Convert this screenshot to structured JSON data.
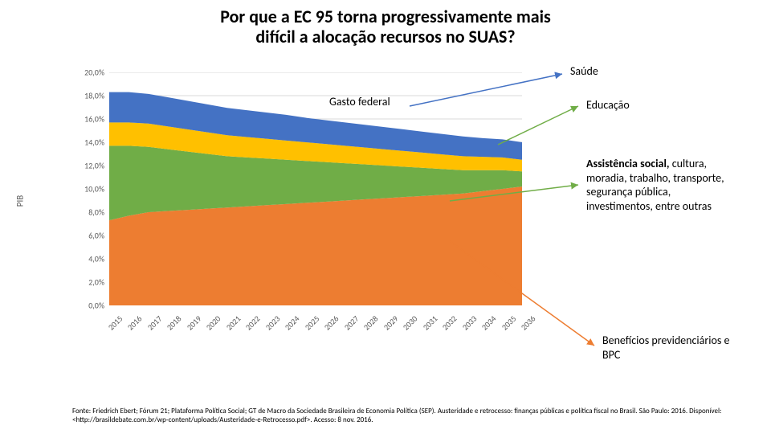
{
  "title_line1": "Por que a EC 95 torna progressivamente mais",
  "title_line2": "difícil a alocação recursos no SUAS?",
  "title_fontsize": 22,
  "chart": {
    "type": "stacked-area",
    "axis_title": "PIB",
    "ylim": [
      0,
      20
    ],
    "ytick_step": 2,
    "ytick_format_suffix": ",0%",
    "y_ticks": [
      "0,0%",
      "2,0%",
      "4,0%",
      "6,0%",
      "8,0%",
      "10,0%",
      "12,0%",
      "14,0%",
      "16,0%",
      "18,0%",
      "20,0%"
    ],
    "x_categories": [
      "2015",
      "2016",
      "2017",
      "2018",
      "2019",
      "2020",
      "2021",
      "2022",
      "2023",
      "2024",
      "2025",
      "2026",
      "2027",
      "2028",
      "2029",
      "2030",
      "2031",
      "2032",
      "2033",
      "2034",
      "2035",
      "2036"
    ],
    "grid_color": "#d9d9d9",
    "background_color": "#ffffff",
    "label_fontsize": 10,
    "series": [
      {
        "name": "beneficios",
        "color": "#ed7d31",
        "values": [
          7.3,
          7.7,
          8.0,
          8.1,
          8.2,
          8.3,
          8.4,
          8.5,
          8.6,
          8.7,
          8.8,
          8.9,
          9.0,
          9.1,
          9.2,
          9.3,
          9.4,
          9.5,
          9.6,
          9.8,
          10.0,
          10.2
        ]
      },
      {
        "name": "assistencia",
        "color": "#70ad47",
        "values": [
          6.4,
          6.0,
          5.6,
          5.3,
          5.0,
          4.7,
          4.4,
          4.2,
          4.0,
          3.8,
          3.6,
          3.4,
          3.2,
          3.0,
          2.8,
          2.6,
          2.4,
          2.2,
          2.0,
          1.8,
          1.6,
          1.3
        ]
      },
      {
        "name": "educacao",
        "color": "#ffc000",
        "values": [
          2.0,
          2.0,
          2.0,
          1.95,
          1.9,
          1.85,
          1.8,
          1.75,
          1.7,
          1.65,
          1.6,
          1.55,
          1.5,
          1.45,
          1.4,
          1.35,
          1.3,
          1.25,
          1.2,
          1.15,
          1.1,
          1.0
        ]
      },
      {
        "name": "saude",
        "color": "#4472c4",
        "values": [
          2.6,
          2.6,
          2.55,
          2.5,
          2.45,
          2.4,
          2.35,
          2.3,
          2.25,
          2.2,
          2.1,
          2.05,
          2.0,
          1.95,
          1.9,
          1.85,
          1.8,
          1.75,
          1.7,
          1.6,
          1.55,
          1.5
        ]
      }
    ]
  },
  "overlay_label": "Gasto federal",
  "callouts": {
    "saude": "Saúde",
    "educacao": "Educação",
    "assistencia_bold": "Assistência social,",
    "assistencia_rest": "cultura, moradia, trabalho, transporte, segurança pública, investimentos, entre outras",
    "beneficios": "Benefícios previdenciários e BPC"
  },
  "arrow_colors": {
    "saude": "#4472c4",
    "educacao": "#70ad47",
    "assistencia": "#70ad47",
    "beneficios": "#ed7d31"
  },
  "footer": "Fonte: Friedrich Ebert; Fórum 21; Plataforma Política Social; GT de Macro da Sociedade Brasileira de Economia Política (SEP). Austeridade e retrocesso: finanças públicas e política fiscal no Brasil. São Paulo: 2016. Disponível: <http://brasildebate.com.br/wp-content/uploads/Austeridade-e-Retrocesso.pdf>. Acesso: 8 nov. 2016."
}
